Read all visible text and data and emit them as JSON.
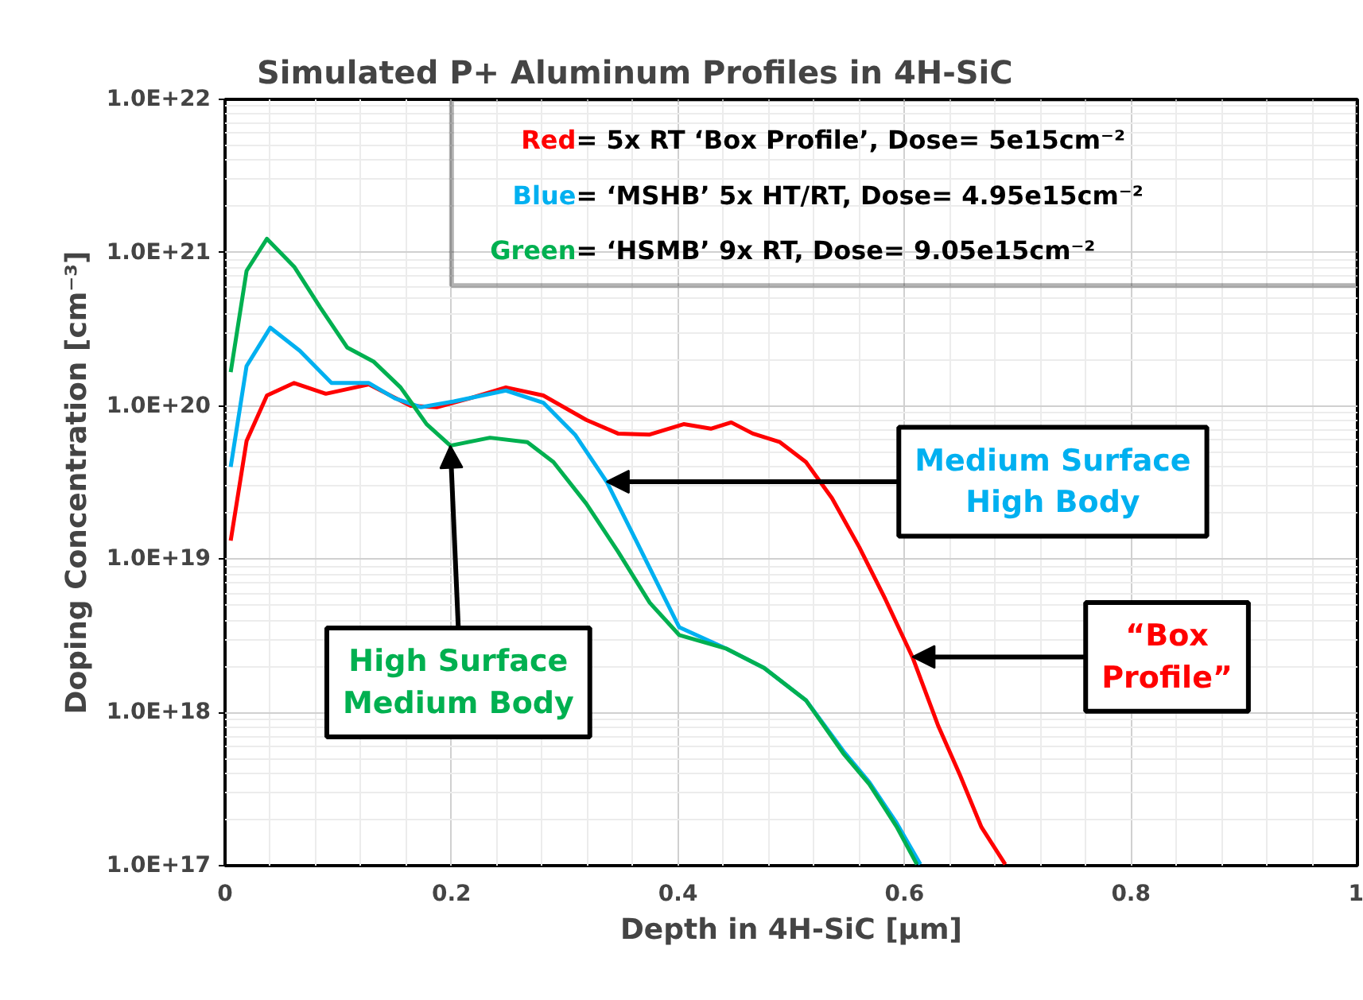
{
  "chart_data": {
    "type": "line",
    "title": "Simulated P+ Aluminum Profiles in 4H-SiC",
    "xlabel": "Depth in 4H-SiC [µm]",
    "ylabel": "Doping Concentration [cm⁻³]",
    "log": "y",
    "grid": true,
    "marker": "none",
    "line_style": "solid",
    "xlim": [
      0,
      1
    ],
    "xticks": [
      0,
      0.2,
      0.4,
      0.6,
      0.8,
      1
    ],
    "ylim": [
      1e+17,
      1e+22
    ],
    "yticks": [
      {
        "value": 1e+17,
        "label": "1.0E+17"
      },
      {
        "value": 1e+18,
        "label": "1.0E+18"
      },
      {
        "value": 1e+19,
        "label": "1.0E+19"
      },
      {
        "value": 1e+20,
        "label": "1.0E+20"
      },
      {
        "value": 1e+21,
        "label": "1.0E+21"
      },
      {
        "value": 1e+22,
        "label": "1.0E+22"
      }
    ],
    "series": [
      {
        "color": "#ff0000",
        "x": [
          0.005,
          0.019,
          0.037,
          0.061,
          0.089,
          0.127,
          0.164,
          0.187,
          0.216,
          0.248,
          0.281,
          0.319,
          0.347,
          0.375,
          0.405,
          0.429,
          0.447,
          0.466,
          0.49,
          0.513,
          0.536,
          0.56,
          0.583,
          0.607,
          0.63,
          0.649,
          0.668,
          0.689
        ],
        "values": [
          1.32e+19,
          5.9e+19,
          1.17e+20,
          1.41e+20,
          1.2e+20,
          1.38e+20,
          1e+20,
          9.8e+19,
          1.12e+20,
          1.32e+20,
          1.17e+20,
          8.1e+19,
          6.6e+19,
          6.5e+19,
          7.6e+19,
          7.1e+19,
          7.8e+19,
          6.6e+19,
          5.8e+19,
          4.3e+19,
          2.5e+19,
          1.2e+19,
          5.5e+18,
          2.3e+18,
          8.1e+17,
          3.9e+17,
          1.78e+17,
          1.02e+17
        ]
      },
      {
        "color": "#00b0f0",
        "x": [
          0.005,
          0.019,
          0.04,
          0.066,
          0.094,
          0.127,
          0.15,
          0.173,
          0.202,
          0.248,
          0.281,
          0.309,
          0.337,
          0.363,
          0.401,
          0.443,
          0.476,
          0.513,
          0.546,
          0.569,
          0.593,
          0.614
        ],
        "values": [
          4e+19,
          1.82e+20,
          3.24e+20,
          2.29e+20,
          1.41e+20,
          1.41e+20,
          1.12e+20,
          9.8e+19,
          1.07e+20,
          1.26e+20,
          1.05e+20,
          6.5e+19,
          3.2e+19,
          1.32e+19,
          3.6e+18,
          2.6e+18,
          1.95e+18,
          1.2e+18,
          5.6e+17,
          3.5e+17,
          1.9e+17,
          1.02e+17
        ]
      },
      {
        "color": "#00b050",
        "x": [
          0.005,
          0.019,
          0.037,
          0.061,
          0.084,
          0.108,
          0.131,
          0.155,
          0.178,
          0.199,
          0.234,
          0.267,
          0.29,
          0.319,
          0.347,
          0.375,
          0.401,
          0.443,
          0.476,
          0.513,
          0.546,
          0.569,
          0.593,
          0.611
        ],
        "values": [
          1.66e+20,
          7.6e+20,
          1.23e+21,
          8.1e+20,
          4.4e+20,
          2.4e+20,
          1.95e+20,
          1.32e+20,
          7.6e+19,
          5.5e+19,
          6.2e+19,
          5.8e+19,
          4.3e+19,
          2.3e+19,
          1.12e+19,
          5.2e+18,
          3.2e+18,
          2.6e+18,
          1.95e+18,
          1.2e+18,
          5.4e+17,
          3.4e+17,
          1.8e+17,
          1.02e+17
        ]
      }
    ],
    "annotations": [
      "Red= 5x RT ‘Box Profile’, Dose= 5e15cm⁻²",
      "Blue= ‘MSHB’ 5x HT/RT, Dose= 4.95e15cm⁻²",
      "Green= ‘HSMB’ 9x RT, Dose= 9.05e15cm⁻²",
      {
        "text": "Medium Surface\nHigh Body",
        "x": 0.337,
        "y": 3.2e+19
      },
      {
        "text": "“Box\nProfile”",
        "x": 0.607,
        "y": 2.3e+18
      },
      {
        "text": "High Surface\nMedium Body",
        "x": 0.199,
        "y": 5.5e+19
      }
    ]
  }
}
